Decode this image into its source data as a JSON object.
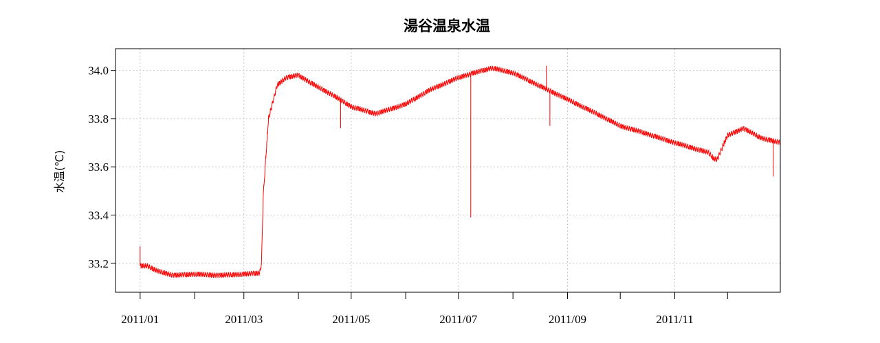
{
  "chart_data": {
    "type": "line",
    "title": "湯谷温泉水温",
    "ylabel": "水温(℃)",
    "xlabel": "",
    "xlim": [
      "2010-12-18",
      "2011-12-31"
    ],
    "ylim": [
      33.08,
      34.09
    ],
    "y_ticks": [
      33.2,
      33.4,
      33.6,
      33.8,
      34.0
    ],
    "y_tick_labels": [
      "33.2",
      "33.4",
      "33.6",
      "33.8",
      "34.0"
    ],
    "x_ticks": [
      "2011-01-01",
      "2011-02-01",
      "2011-03-01",
      "2011-04-01",
      "2011-05-01",
      "2011-06-01",
      "2011-07-01",
      "2011-08-01",
      "2011-09-01",
      "2011-10-01",
      "2011-11-01",
      "2011-12-01"
    ],
    "x_tick_labels": [
      "2011/01",
      "",
      "2011/03",
      "",
      "2011/05",
      "",
      "2011/07",
      "",
      "2011/09",
      "",
      "2011/11",
      ""
    ],
    "grid": true,
    "series": [
      {
        "color": "#ff0000",
        "noise": 0.012,
        "x": [
          "2011-01-01",
          "2011-01-05",
          "2011-01-10",
          "2011-01-20",
          "2011-02-01",
          "2011-02-15",
          "2011-03-01",
          "2011-03-10",
          "2011-03-11",
          "2011-03-12",
          "2011-03-15",
          "2011-03-20",
          "2011-03-25",
          "2011-04-01",
          "2011-04-10",
          "2011-04-20",
          "2011-05-01",
          "2011-05-15",
          "2011-06-01",
          "2011-06-15",
          "2011-07-01",
          "2011-07-10",
          "2011-07-20",
          "2011-08-01",
          "2011-08-15",
          "2011-09-01",
          "2011-09-15",
          "2011-10-01",
          "2011-10-15",
          "2011-11-01",
          "2011-11-15",
          "2011-11-20",
          "2011-11-23",
          "2011-11-25",
          "2011-11-28",
          "2011-12-01",
          "2011-12-10",
          "2011-12-20",
          "2011-12-31"
        ],
        "values": [
          33.19,
          33.19,
          33.17,
          33.15,
          33.155,
          33.15,
          33.155,
          33.16,
          33.2,
          33.48,
          33.8,
          33.94,
          33.97,
          33.98,
          33.94,
          33.9,
          33.85,
          33.82,
          33.86,
          33.92,
          33.97,
          33.99,
          34.01,
          33.99,
          33.94,
          33.88,
          33.83,
          33.77,
          33.74,
          33.7,
          33.67,
          33.66,
          33.635,
          33.63,
          33.68,
          33.73,
          33.76,
          33.72,
          33.7
        ]
      }
    ],
    "spikes": [
      {
        "x": "2011-01-01",
        "value": 33.27
      },
      {
        "x": "2011-04-25",
        "value": 33.76
      },
      {
        "x": "2011-07-08",
        "value": 33.39
      },
      {
        "x": "2011-08-20",
        "value": 34.02
      },
      {
        "x": "2011-08-22",
        "value": 33.77
      },
      {
        "x": "2011-12-27",
        "value": 33.56
      }
    ]
  }
}
